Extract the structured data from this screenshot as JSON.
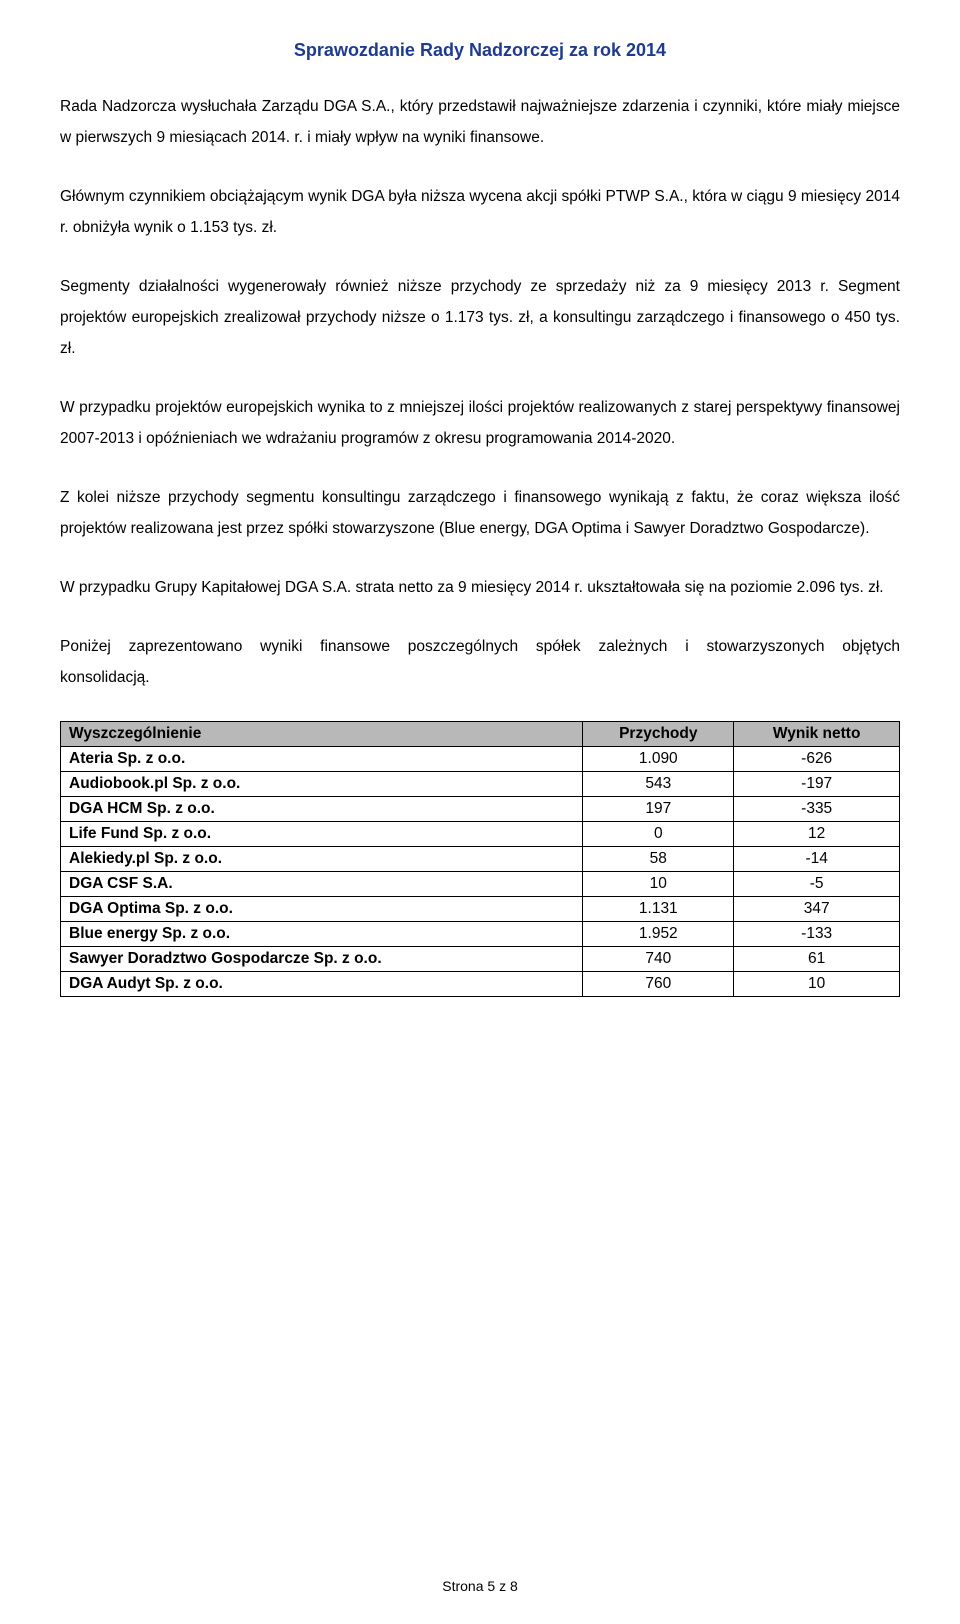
{
  "header": {
    "title": "Sprawozdanie Rady Nadzorczej za rok 2014",
    "color": "#1f3b8f"
  },
  "paragraphs": {
    "p1": "Rada Nadzorcza wysłuchała Zarządu DGA S.A., który przedstawił najważniejsze zdarzenia i czynniki, które miały miejsce w pierwszych 9 miesiącach 2014. r. i miały wpływ na wyniki finansowe.",
    "p2": "Głównym czynnikiem obciążającym wynik DGA była niższa wycena akcji spółki PTWP S.A., która w ciągu 9 miesięcy 2014 r. obniżyła wynik o 1.153 tys. zł.",
    "p3": "Segmenty działalności wygenerowały również niższe przychody ze sprzedaży niż za 9 miesięcy 2013 r. Segment projektów europejskich zrealizował przychody niższe o 1.173 tys. zł, a konsultingu zarządczego i finansowego o 450 tys. zł.",
    "p4": "W przypadku projektów europejskich wynika to z mniejszej ilości projektów realizowanych z starej perspektywy finansowej 2007-2013 i opóźnieniach we wdrażaniu programów z okresu programowania 2014-2020.",
    "p5": "Z kolei niższe przychody segmentu konsultingu zarządczego i finansowego wynikają z faktu, że coraz większa ilość projektów realizowana jest przez spółki  stowarzyszone (Blue energy, DGA Optima i Sawyer Doradztwo Gospodarcze).",
    "p6": "W przypadku Grupy Kapitałowej DGA S.A. strata netto za 9 miesięcy 2014 r. ukształtowała się na poziomie 2.096 tys. zł.",
    "p7": "Poniżej zaprezentowano wyniki finansowe poszczególnych spółek zależnych i stowarzyszonych objętych konsolidacją."
  },
  "table": {
    "headers": {
      "c1": "Wyszczególnienie",
      "c2": "Przychody",
      "c3": "Wynik netto"
    },
    "header_bg": "#b8b8b8",
    "rows": [
      {
        "name": "Ateria Sp. z o.o.",
        "rev": "1.090",
        "net": "-626"
      },
      {
        "name": "Audiobook.pl Sp. z o.o.",
        "rev": "543",
        "net": "-197"
      },
      {
        "name": "DGA HCM Sp. z o.o.",
        "rev": "197",
        "net": "-335"
      },
      {
        "name": "Life Fund Sp. z o.o.",
        "rev": "0",
        "net": "12"
      },
      {
        "name": "Alekiedy.pl Sp. z o.o.",
        "rev": "58",
        "net": "-14"
      },
      {
        "name": "DGA CSF S.A.",
        "rev": "10",
        "net": "-5"
      },
      {
        "name": "DGA Optima Sp. z o.o.",
        "rev": "1.131",
        "net": "347"
      },
      {
        "name": "Blue energy Sp. z o.o.",
        "rev": "1.952",
        "net": "-133"
      },
      {
        "name": "Sawyer Doradztwo Gospodarcze Sp. z o.o.",
        "rev": "740",
        "net": "61"
      },
      {
        "name": "DGA Audyt Sp. z o.o.",
        "rev": "760",
        "net": "10"
      }
    ]
  },
  "footer": {
    "text": "Strona 5 z 8"
  }
}
